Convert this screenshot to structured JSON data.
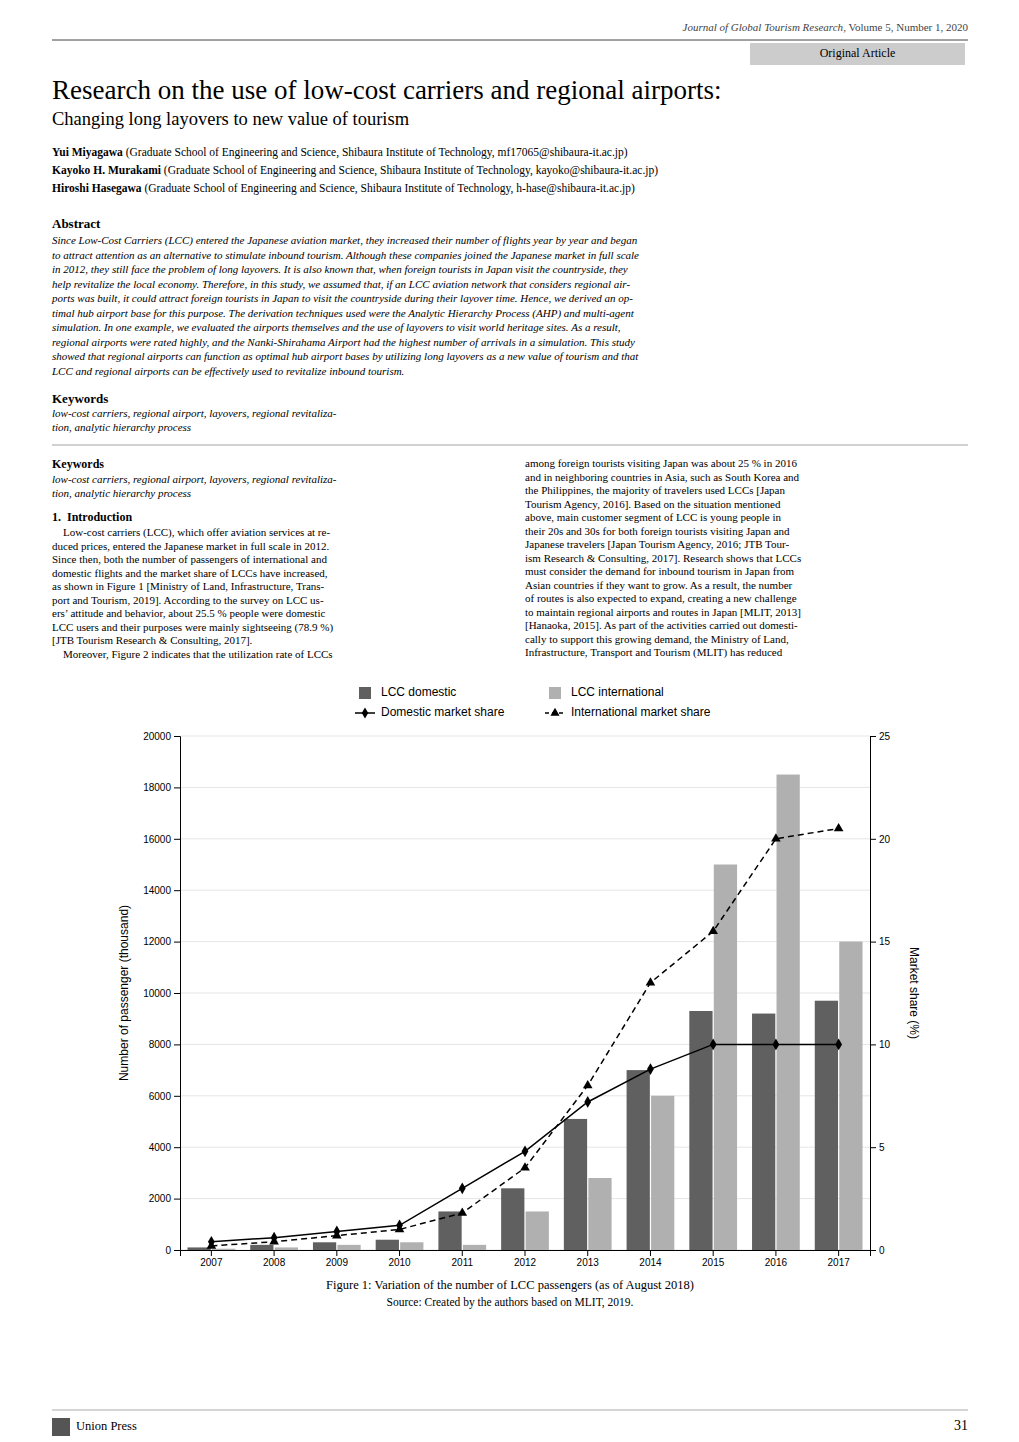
{
  "page": {
    "journal_line_italic": "Journal of Global Tourism Research",
    "journal_line_normal": ", Volume 5, Number 1, 2020",
    "article_type": "Original Article",
    "title_main": "Research on the use of low-cost carriers and regional airports:",
    "title_sub": "Changing long layovers to new value of tourism",
    "authors": [
      {
        "name": "Yui Miyagawa",
        "affiliation": " (Graduate School of Engineering and Science, Shibaura Institute of Technology, mf17065@shibaura-it.ac.jp)"
      },
      {
        "name": "Kayoko H. Murakami",
        "affiliation": " (Graduate School of Engineering and Science, Shibaura Institute of Technology, kayoko@shibaura-it.ac.jp)"
      },
      {
        "name": "Hiroshi Hasegawa",
        "affiliation": " (Graduate School of Engineering and Science, Shibaura Institute of Technology, h-hase@shibaura-it.ac.jp)"
      }
    ],
    "abstract_title": "Abstract",
    "abstract_lines": [
      "Since Low-Cost Carriers (LCC) entered the Japanese aviation market, they increased their number of flights year by year and began",
      "to attract attention as an alternative to stimulate inbound tourism. Although these companies joined the Japanese market in full scale",
      "in 2012, they still face the problem of long layovers. It is also known that, when foreign tourists in Japan visit the countryside, they",
      "help revitalize the local economy. Therefore, in this study, we assumed that, if an LCC aviation network that considers regional air-",
      "ports was built, it could attract foreign tourists in Japan to visit the countryside during their layover time. Hence, we derived an op-",
      "timal hub airport base for this purpose. The derivation techniques used were the Analytic Hierarchy Process (AHP) and multi-agent",
      "simulation. In one example, we evaluated the airports themselves and the use of layovers to visit world heritage sites. As a result,",
      "regional airports were rated highly, and the Nanki-Shirahama Airport had the highest number of arrivals in a simulation. This study",
      "showed that regional airports can function as optimal hub airport bases by utilizing long layovers as a new value of tourism and that",
      "LCC and regional airports can be effectively used to revitalize inbound tourism."
    ],
    "keywords_title": "Keywords",
    "keywords_lines": [
      "low-cost carriers, regional airport, layovers, regional revitaliza-",
      "tion, analytic hierarchy process"
    ],
    "intro_title": "1.  Introduction",
    "col1_lines": [
      "    Low-cost carriers (LCC), which offer aviation services at re-",
      "duced prices, entered the Japanese market in full scale in 2012.",
      "Since then, both the number of passengers of international and",
      "domestic flights and the market share of LCCs have increased,",
      "as shown in Figure 1 [Ministry of Land, Infrastructure, Trans-",
      "port and Tourism, 2019]. According to the survey on LCC us-",
      "ers’ attitude and behavior, about 25.5 % people were domestic",
      "LCC users and their purposes were mainly sightseeing (78.9 %)",
      "[JTB Tourism Research & Consulting, 2017].",
      "    Moreover, Figure 2 indicates that the utilization rate of LCCs"
    ],
    "col2_lines": [
      "among foreign tourists visiting Japan was about 25 % in 2016",
      "and in neighboring countries in Asia, such as South Korea and",
      "the Philippines, the majority of travelers used LCCs [Japan",
      "Tourism Agency, 2016]. Based on the situation mentioned",
      "above, main customer segment of LCC is young people in",
      "their 20s and 30s for both foreign tourists visiting Japan and",
      "Japanese travelers [Japan Tourism Agency, 2016; JTB Tour-",
      "ism Research & Consulting, 2017]. Research shows that LCCs",
      "must consider the demand for inbound tourism in Japan from",
      "Asian countries if they want to grow. As a result, the number",
      "of routes is also expected to expand, creating a new challenge",
      "to maintain regional airports and routes in Japan [MLIT, 2013]",
      "[Hanaoka, 2015]. As part of the activities carried out domesti-",
      "cally to support this growing demand, the Ministry of Land,",
      "Infrastructure, Transport and Tourism (MLIT) has reduced"
    ],
    "fig_caption": "Figure 1: Variation of the number of LCC passengers (as of August 2018)",
    "fig_source": "Source: Created by the authors based on MLIT, 2019.",
    "publisher": "Union Press",
    "page_number": "31"
  },
  "chart_data": {
    "type": "bar",
    "categories": [
      "2007",
      "2008",
      "2009",
      "2010",
      "2011",
      "2012",
      "2013",
      "2014",
      "2015",
      "2016",
      "2017"
    ],
    "series": [
      {
        "name": "LCC domestic",
        "type": "bar",
        "color": "#606060",
        "values": [
          100,
          200,
          300,
          400,
          1500,
          2400,
          5100,
          7000,
          9300,
          9200,
          9700
        ]
      },
      {
        "name": "LCC international",
        "type": "bar",
        "color": "#b0b0b0",
        "values": [
          50,
          100,
          200,
          300,
          200,
          1500,
          2800,
          6000,
          15000,
          18500,
          12000
        ]
      },
      {
        "name": "Domestic market share",
        "type": "line",
        "axis": "y2",
        "color": "#000000",
        "marker": "diamond",
        "line_style": "solid",
        "values": [
          0.4,
          0.6,
          0.9,
          1.2,
          3.0,
          4.8,
          7.2,
          8.8,
          10.0,
          10.0,
          10.0
        ]
      },
      {
        "name": "International market share",
        "type": "line",
        "axis": "y2",
        "color": "#000000",
        "marker": "triangle",
        "line_style": "dashed",
        "values": [
          0.2,
          0.4,
          0.7,
          1.0,
          1.8,
          4.0,
          8.0,
          13.0,
          15.5,
          20.0,
          20.5
        ]
      }
    ],
    "ylabel": "Number of passenger (thousand)",
    "y2label": "Market share (%)",
    "ylim": [
      0,
      20000
    ],
    "yticks": [
      0,
      2000,
      4000,
      6000,
      8000,
      10000,
      12000,
      14000,
      16000,
      18000,
      20000
    ],
    "y2lim": [
      0,
      25
    ],
    "y2ticks": [
      0,
      5,
      10,
      15,
      20,
      25
    ],
    "grid": true,
    "legend": "top"
  }
}
